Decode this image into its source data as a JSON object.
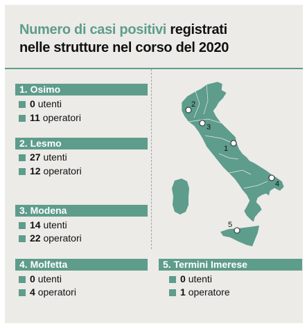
{
  "title": {
    "accent": "Numero di casi positivi",
    "rest_line1": "registrati",
    "line2": "nelle strutture nel corso del 2020"
  },
  "colors": {
    "accent": "#5e9c8c",
    "background": "#ecebe7",
    "map_fill": "#5e9c8c"
  },
  "locations": [
    {
      "label": "1. Osimo",
      "rows": [
        {
          "num": "0",
          "text": "utenti"
        },
        {
          "num": "11",
          "text": "operatori"
        }
      ],
      "map_marker": "1"
    },
    {
      "label": "2. Lesmo",
      "rows": [
        {
          "num": "27",
          "text": "utenti"
        },
        {
          "num": "12",
          "text": "operatori"
        }
      ],
      "map_marker": "2"
    },
    {
      "label": "3. Modena",
      "rows": [
        {
          "num": "14",
          "text": "utenti"
        },
        {
          "num": "22",
          "text": "operatori"
        }
      ],
      "map_marker": "3"
    },
    {
      "label": "4. Molfetta",
      "rows": [
        {
          "num": "0",
          "text": "utenti"
        },
        {
          "num": "4",
          "text": "operatori"
        }
      ],
      "map_marker": "4"
    },
    {
      "label": "5. Termini Imerese",
      "rows": [
        {
          "num": "0",
          "text": "utenti"
        },
        {
          "num": "1",
          "text": "operatore"
        }
      ],
      "map_marker": "5"
    }
  ]
}
